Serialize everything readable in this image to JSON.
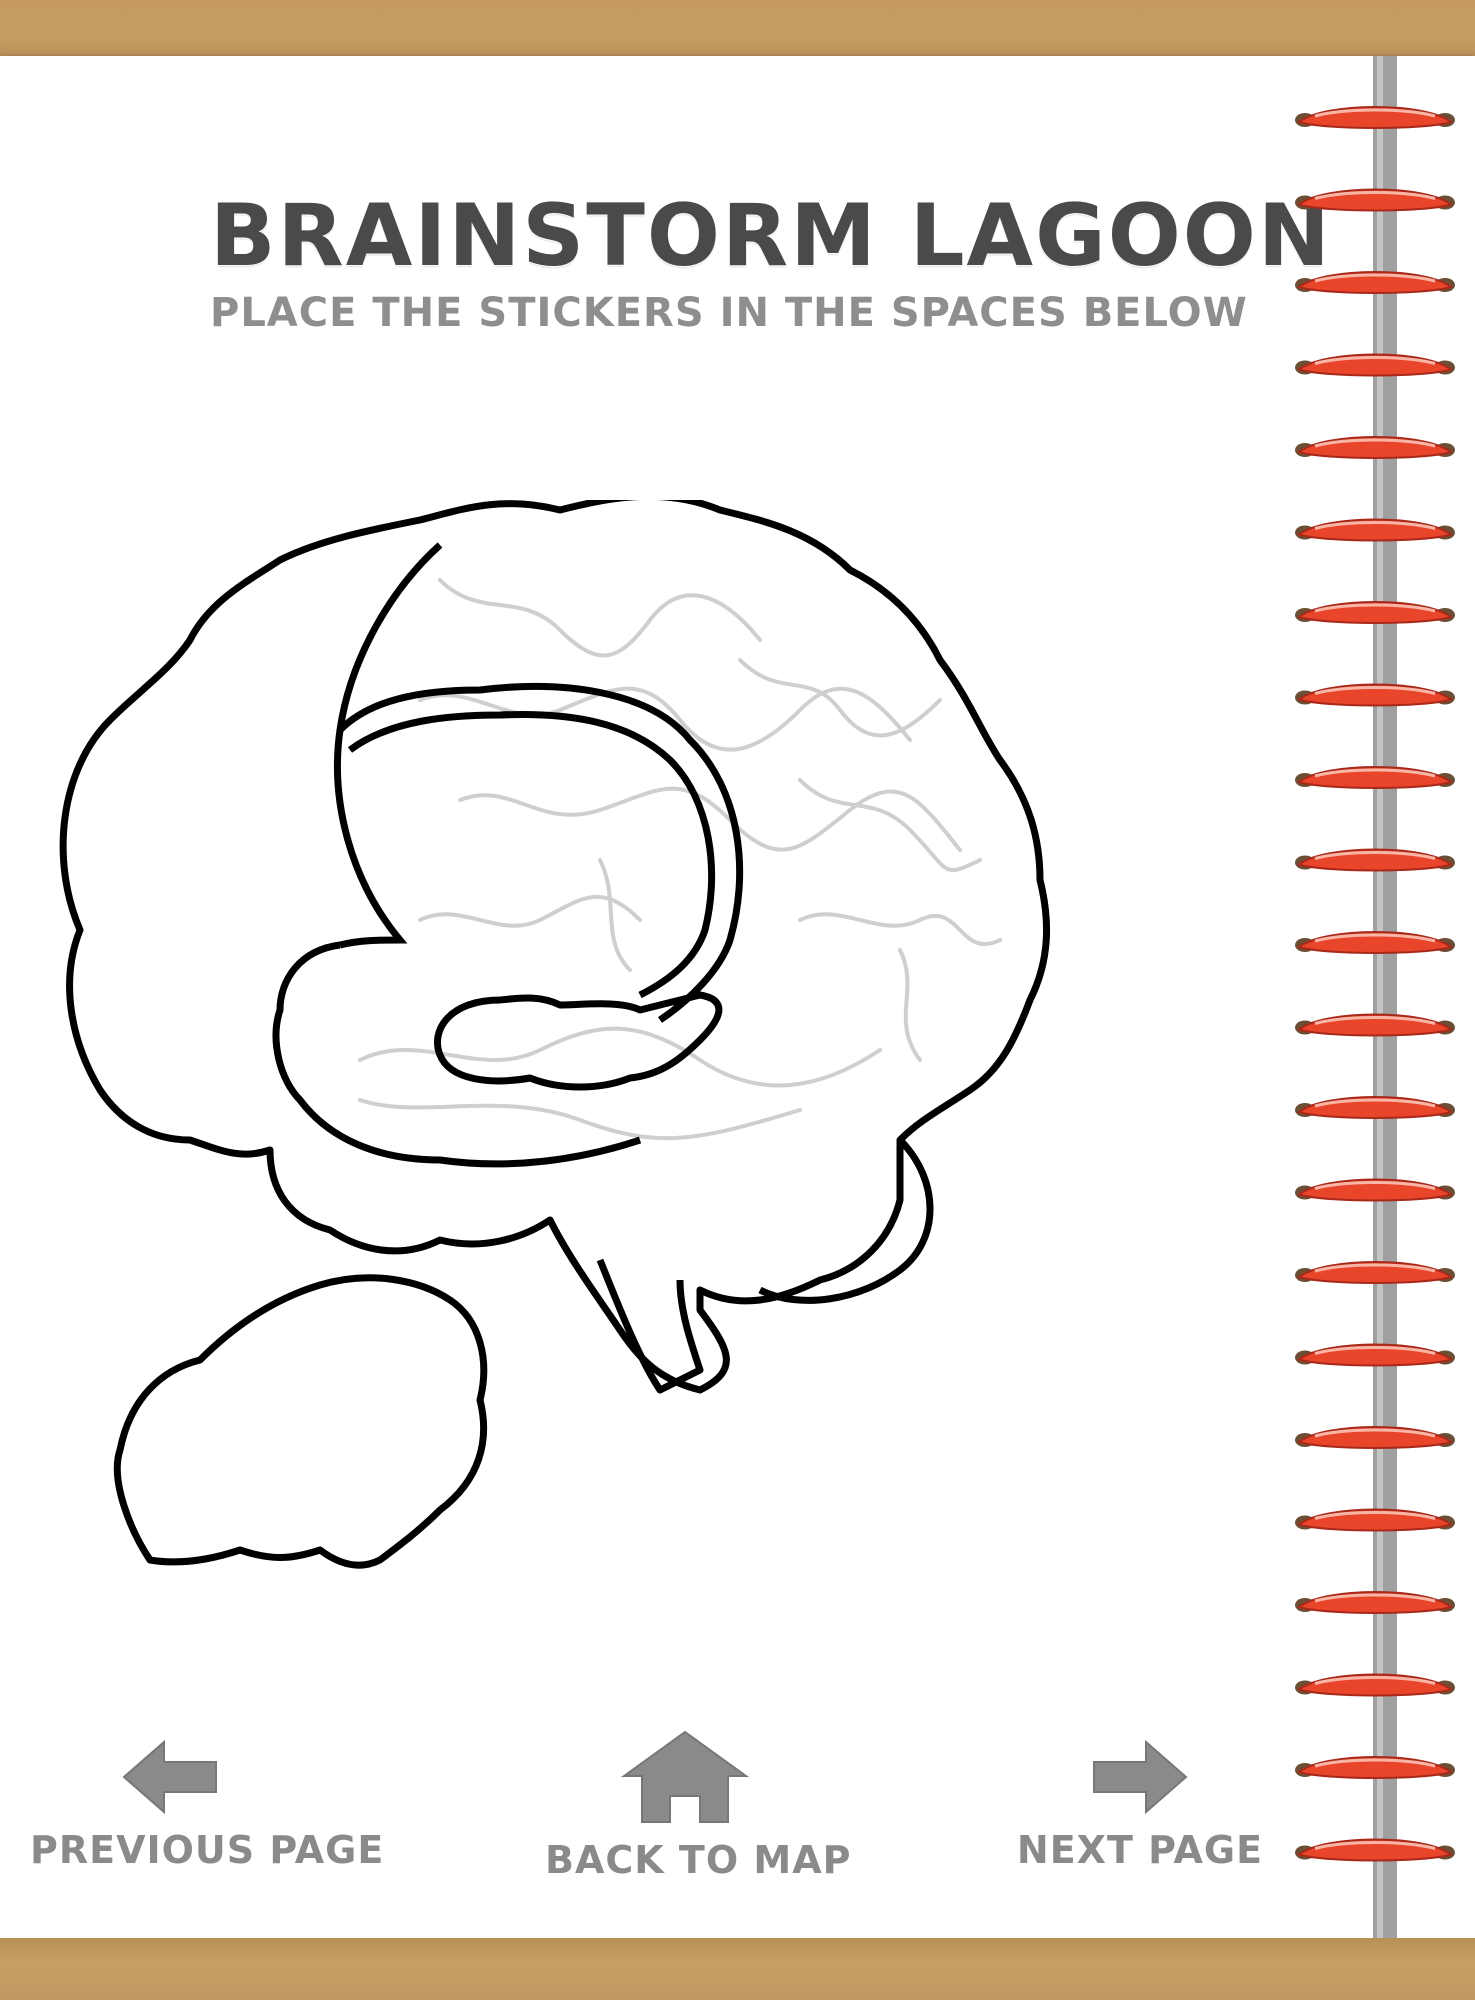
{
  "page": {
    "title": "BRAINSTORM LAGOON",
    "subtitle": "PLACE THE STICKERS IN THE SPACES BELOW"
  },
  "navigation": {
    "previous_label": "PREVIOUS PAGE",
    "previous_icon": "arrow-left-icon",
    "home_label": "BACK TO MAP",
    "home_icon": "home-icon",
    "next_label": "NEXT PAGE",
    "next_icon": "arrow-right-icon"
  },
  "colors": {
    "paper": "#ffffff",
    "wood": "#c9a26a",
    "title": "#4a4a4a",
    "subtitle": "#8e8e8e",
    "nav": "#8a8a8a",
    "outline": "#000000",
    "detail": "#d0d0d0",
    "ring": "#e8452a",
    "spine": "#9a9a9a"
  },
  "binding": {
    "ring_count": 22
  }
}
